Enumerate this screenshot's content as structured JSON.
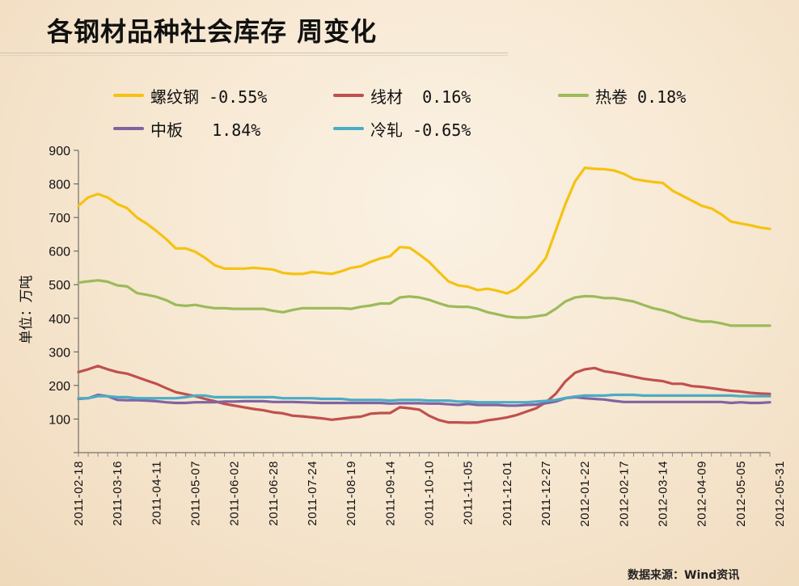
{
  "title": "各钢材品种社会库存    周变化",
  "source": "数据来源：Wind资讯",
  "chart_data": {
    "type": "line",
    "ylabel": "单位：万吨",
    "ylim": [
      0,
      900
    ],
    "yticks": [
      100,
      200,
      300,
      400,
      500,
      600,
      700,
      800,
      900
    ],
    "x_tick_labels": [
      "2011-02-18",
      "2011-03-16",
      "2011-04-11",
      "2011-05-07",
      "2011-06-02",
      "2011-06-28",
      "2011-07-24",
      "2011-08-19",
      "2011-09-14",
      "2011-10-10",
      "2011-11-05",
      "2011-12-01",
      "2011-12-27",
      "2012-01-22",
      "2012-02-17",
      "2012-03-14",
      "2012-04-09",
      "2012-05-05",
      "2012-05-31"
    ],
    "legend": [
      "螺纹钢 -0.55%",
      "线材  0.16%",
      "热卷 0.18%",
      "中板   1.84%",
      "冷轧 -0.65%"
    ],
    "series": [
      {
        "name": "螺纹钢",
        "change": "-0.55%",
        "color": "#f5c211",
        "values": [
          735,
          760,
          770,
          760,
          740,
          728,
          700,
          682,
          660,
          636,
          608,
          608,
          598,
          580,
          558,
          548,
          548,
          548,
          550,
          548,
          545,
          535,
          532,
          532,
          538,
          535,
          532,
          540,
          550,
          555,
          568,
          578,
          585,
          612,
          610,
          590,
          568,
          538,
          510,
          498,
          494,
          484,
          488,
          482,
          474,
          488,
          515,
          543,
          580,
          660,
          740,
          808,
          848,
          845,
          844,
          840,
          830,
          815,
          810,
          806,
          803,
          780,
          765,
          750,
          735,
          727,
          710,
          688,
          682,
          677,
          670,
          666
        ]
      },
      {
        "name": "线材",
        "change": "0.16%",
        "color": "#c0504d",
        "values": [
          240,
          248,
          258,
          248,
          240,
          235,
          225,
          215,
          205,
          192,
          180,
          174,
          168,
          160,
          153,
          145,
          140,
          135,
          130,
          126,
          120,
          117,
          110,
          108,
          105,
          102,
          98,
          101,
          105,
          107,
          116,
          118,
          118,
          135,
          132,
          128,
          110,
          97,
          90,
          90,
          89,
          90,
          96,
          100,
          105,
          112,
          122,
          132,
          150,
          175,
          212,
          238,
          248,
          252,
          242,
          238,
          232,
          226,
          220,
          216,
          213,
          205,
          205,
          198,
          196,
          192,
          188,
          184,
          182,
          178,
          176,
          175
        ]
      },
      {
        "name": "热卷",
        "change": "0.18%",
        "color": "#9bbb59",
        "values": [
          506,
          510,
          513,
          509,
          498,
          495,
          475,
          470,
          464,
          454,
          440,
          437,
          440,
          434,
          430,
          430,
          428,
          428,
          428,
          428,
          422,
          418,
          425,
          430,
          430,
          430,
          430,
          430,
          428,
          434,
          438,
          444,
          444,
          462,
          465,
          462,
          455,
          445,
          436,
          434,
          434,
          428,
          418,
          412,
          405,
          402,
          402,
          406,
          410,
          428,
          450,
          462,
          466,
          465,
          460,
          460,
          455,
          450,
          440,
          430,
          424,
          415,
          403,
          396,
          390,
          390,
          385,
          378,
          378,
          378,
          378,
          378
        ]
      },
      {
        "name": "中板",
        "change": "1.84%",
        "color": "#8064a2",
        "values": [
          160,
          162,
          172,
          168,
          157,
          156,
          156,
          155,
          153,
          150,
          148,
          148,
          150,
          150,
          150,
          152,
          152,
          153,
          153,
          153,
          151,
          151,
          151,
          150,
          149,
          148,
          148,
          148,
          148,
          148,
          148,
          148,
          146,
          147,
          147,
          147,
          146,
          146,
          144,
          142,
          145,
          142,
          142,
          142,
          140,
          140,
          142,
          143,
          147,
          152,
          162,
          165,
          162,
          160,
          158,
          154,
          151,
          151,
          151,
          151,
          151,
          151,
          151,
          151,
          151,
          151,
          151,
          148,
          150,
          148,
          148,
          150
        ]
      },
      {
        "name": "冷轧",
        "change": "-0.65%",
        "color": "#4bacc6",
        "values": [
          162,
          162,
          168,
          168,
          165,
          165,
          162,
          162,
          162,
          162,
          162,
          165,
          170,
          170,
          165,
          165,
          165,
          165,
          165,
          165,
          165,
          162,
          162,
          162,
          162,
          160,
          160,
          160,
          157,
          157,
          157,
          157,
          155,
          157,
          157,
          157,
          155,
          155,
          155,
          152,
          152,
          150,
          150,
          150,
          150,
          150,
          150,
          152,
          154,
          157,
          163,
          167,
          170,
          170,
          170,
          172,
          172,
          172,
          170,
          170,
          170,
          170,
          170,
          170,
          170,
          170,
          170,
          170,
          168,
          168,
          168,
          168
        ]
      }
    ]
  }
}
